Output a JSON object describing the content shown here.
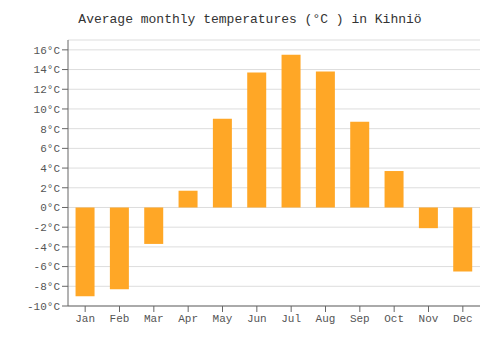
{
  "chart_data": {
    "type": "bar",
    "title": "Average monthly temperatures (°C ) in Kihniö",
    "categories": [
      "Jan",
      "Feb",
      "Mar",
      "Apr",
      "May",
      "Jun",
      "Jul",
      "Aug",
      "Sep",
      "Oct",
      "Nov",
      "Dec"
    ],
    "values": [
      -9.0,
      -8.3,
      -3.7,
      1.7,
      9.0,
      13.7,
      15.5,
      13.8,
      8.7,
      3.7,
      -2.1,
      -6.5
    ],
    "color": "#FFA726",
    "ylim": [
      -10,
      17
    ],
    "yticks": [
      {
        "value": -10,
        "label": "-10°C"
      },
      {
        "value": -8,
        "label": "-8°C"
      },
      {
        "value": -6,
        "label": "-6°C"
      },
      {
        "value": -4,
        "label": "-4°C"
      },
      {
        "value": -2,
        "label": "-2°C"
      },
      {
        "value": 0,
        "label": "0°C"
      },
      {
        "value": 2,
        "label": "2°C"
      },
      {
        "value": 4,
        "label": "4°C"
      },
      {
        "value": 6,
        "label": "6°C"
      },
      {
        "value": 8,
        "label": "8°C"
      },
      {
        "value": 10,
        "label": "10°C"
      },
      {
        "value": 12,
        "label": "12°C"
      },
      {
        "value": 14,
        "label": "14°C"
      },
      {
        "value": 16,
        "label": "16°C"
      }
    ],
    "grid": true
  }
}
